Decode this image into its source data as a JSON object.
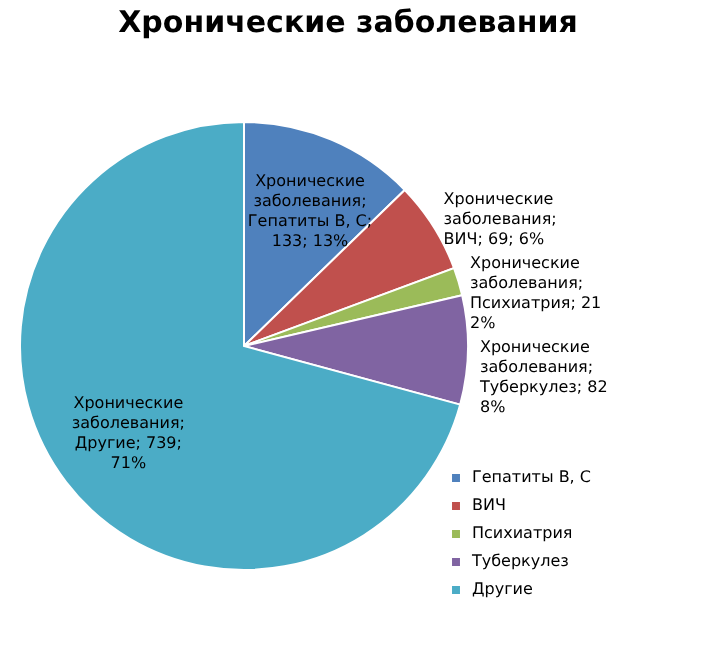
{
  "chart_data": {
    "type": "pie",
    "title": "Хронические заболевания",
    "categories": [
      "Гепатиты B, C",
      "ВИЧ",
      "Психиатрия",
      "Туберкулез",
      "Другие"
    ],
    "values": [
      133,
      69,
      21,
      82,
      739
    ],
    "colors": [
      "#4f81bd",
      "#c0504d",
      "#9bbb59",
      "#8064a2",
      "#4bacc6"
    ],
    "value_labels": [
      "Хронические заболевания; Гепатиты B, C; 133; 13%",
      "Хронические заболевания; ВИЧ; 69; 6%",
      "Хронические заболевания; Психиатрия; 21 2%",
      "Хронические заболевания; Туберкулез; 82 8%",
      "Хронические заболевания; Другие; 739; 71%"
    ],
    "legend": "right"
  }
}
